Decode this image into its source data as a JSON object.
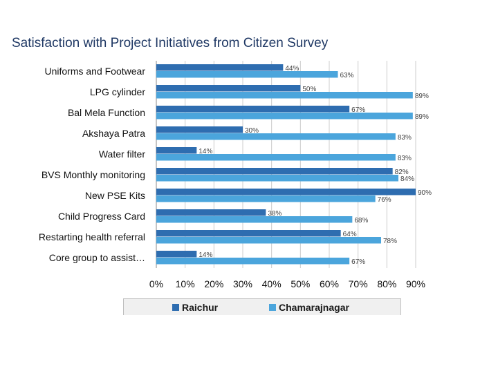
{
  "slide": {
    "title": "Satisfaction with Project Initiatives from Citizen Survey"
  },
  "chart_data": {
    "type": "bar",
    "orientation": "horizontal",
    "categories": [
      "Uniforms and Footwear",
      "LPG cylinder",
      "Bal Mela Function",
      "Akshaya Patra",
      "Water filter",
      "BVS Monthly monitoring",
      "New PSE Kits",
      "Child Progress Card",
      "Restarting health referral",
      "Core group to assist…"
    ],
    "series": [
      {
        "name": "Raichur",
        "color": "#2e6db0",
        "values": [
          44,
          50,
          67,
          30,
          14,
          82,
          90,
          38,
          64,
          14
        ],
        "labels": [
          "44%",
          "50%",
          "67%",
          "30%",
          "14%",
          "82%",
          "90%",
          "38%",
          "64%",
          "14%"
        ]
      },
      {
        "name": "Chamarajnagar",
        "color": "#4ba5dc",
        "values": [
          63,
          89,
          89,
          83,
          83,
          84,
          76,
          68,
          78,
          67
        ],
        "labels": [
          "63%",
          "89%",
          "89%",
          "83%",
          "83%",
          "84%",
          "76%",
          "68%",
          "78%",
          "67%"
        ]
      }
    ],
    "x_ticks": [
      "0%",
      "10%",
      "20%",
      "30%",
      "40%",
      "50%",
      "60%",
      "70%",
      "80%",
      "90%"
    ],
    "xlim": [
      0,
      90
    ],
    "grid": true,
    "legend_position": "bottom"
  }
}
